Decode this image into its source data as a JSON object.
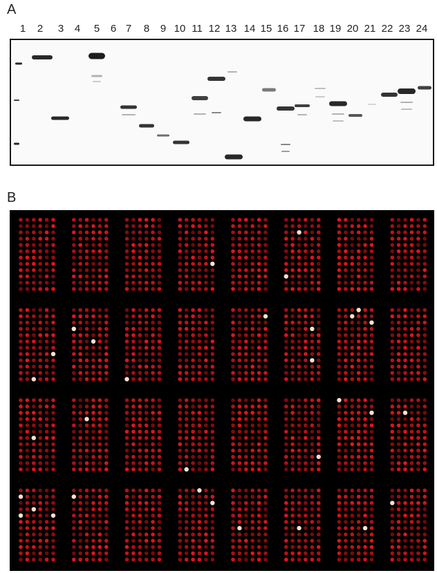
{
  "panel_a": {
    "letter": "A",
    "lane_labels": [
      "1",
      "2",
      "3",
      "4",
      "5",
      "6",
      "7",
      "8",
      "9",
      "10",
      "11",
      "12",
      "13",
      "14",
      "15",
      "16",
      "17",
      "18",
      "19",
      "20",
      "21",
      "22",
      "23",
      "24"
    ]
  },
  "panel_b": {
    "letter": "B",
    "grid": {
      "block_rows": 4,
      "block_cols": 8
    }
  },
  "colors": {
    "gel_background": "#fafafa",
    "band": "#111111",
    "array_background": "#000000",
    "spot": "#e8141c",
    "bright_spot": "#ffe0d0"
  }
}
